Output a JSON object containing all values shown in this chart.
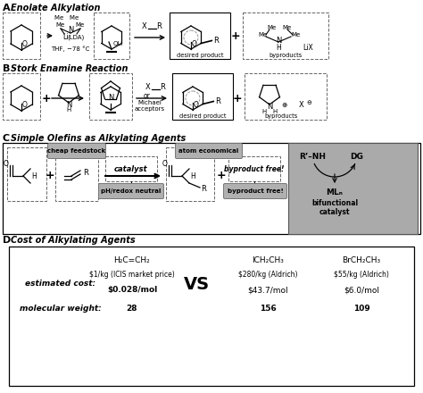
{
  "bg": "#ffffff",
  "gray_label": "#888888",
  "gray_box_fill": "#b0b0b0",
  "dark_box_fill": "#999999",
  "sections": {
    "A_label": "A",
    "A_title": "Enolate Alkylation",
    "B_label": "B",
    "B_title": "Stork Enamine Reaction",
    "C_label": "C",
    "C_title": "Simple Olefins as Alkylating Agents",
    "D_label": "D",
    "D_title": "Cost of Alkylating Agents"
  },
  "C_callouts": [
    "cheap feedstock",
    "pH/redox neutral",
    "atom economical",
    "byproduct free!"
  ],
  "C_catalyst": "catalyst",
  "C_bifunctional": [
    "R’–NH",
    "DG",
    "MLₙ",
    "bifunctional",
    "catalyst"
  ],
  "D_col1": "H₂C=CH₂",
  "D_col2": "ICH₂CH₃",
  "D_col3": "BrCH₂CH₃",
  "D_row1_label": "estimated cost:",
  "D_row1_c1": "$1/kg (ICIS market price)",
  "D_row1_vs": "VS",
  "D_row1_c2": "$280/kg (Aldrich)",
  "D_row1_c3": "$55/kg (Aldrich)",
  "D_row2_c1": "$0.028/mol",
  "D_row2_c2": "$43.7/mol",
  "D_row2_c3": "$6.0/mol",
  "D_row3_label": "molecular weight:",
  "D_row3_c1": "28",
  "D_row3_c2": "156",
  "D_row3_c3": "109",
  "A_lda_line1": "Me   Me",
  "A_lda_line2": "Me       Me",
  "A_lda_n": "N",
  "A_lda_li": "Li",
  "A_lda_lda": "(LDA)",
  "A_conditions": "THF, −78 °C",
  "A_OLi": "OLi",
  "A_xr": "X",
  "A_R": "R",
  "A_desired": "desired product",
  "A_byproducts": "byproducts",
  "A_LiX": "LiX",
  "A_Me": "Me",
  "A_H": "H",
  "B_desired": "desired product",
  "B_byproducts": "byproducts",
  "B_xr_or": "or",
  "B_michael": "Michael",
  "B_acceptors": "acceptors"
}
